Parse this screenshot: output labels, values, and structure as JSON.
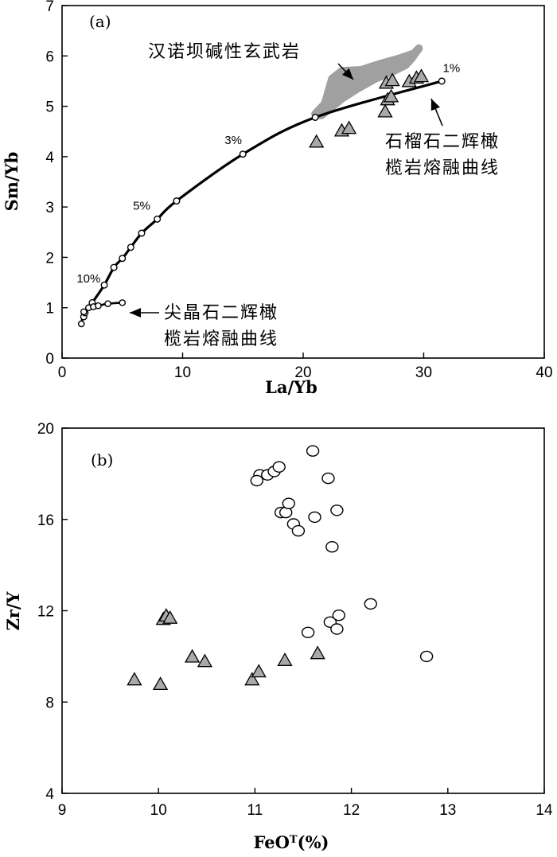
{
  "chart_data": [
    {
      "type": "scatter",
      "panel_label": "(a)",
      "xlabel": "La/Yb",
      "ylabel": "Sm/Yb",
      "xlim": [
        0,
        40
      ],
      "ylim": [
        0,
        7
      ],
      "xticks": [
        "0",
        "10",
        "20",
        "30",
        "40"
      ],
      "yticks": [
        "0",
        "1",
        "2",
        "3",
        "4",
        "5",
        "6",
        "7"
      ],
      "grid": false,
      "colors": {
        "curve": "#000000",
        "triangles": "#a9a9a9",
        "field": "#a0a0a0"
      },
      "field": {
        "label": "汉诺坝碱性玄武岩",
        "outline": [
          [
            21.0,
            4.85
          ],
          [
            21.8,
            5.05
          ],
          [
            22.4,
            5.55
          ],
          [
            23.2,
            5.7
          ],
          [
            24.8,
            5.72
          ],
          [
            26.5,
            5.85
          ],
          [
            28.0,
            5.95
          ],
          [
            29.2,
            6.05
          ],
          [
            29.6,
            6.15
          ],
          [
            29.0,
            5.95
          ],
          [
            28.5,
            5.82
          ],
          [
            27.5,
            5.7
          ],
          [
            26.0,
            5.55
          ],
          [
            24.5,
            5.35
          ],
          [
            23.2,
            5.15
          ],
          [
            22.2,
            4.95
          ],
          [
            21.5,
            4.82
          ]
        ]
      },
      "garnet_curve": {
        "label_line1": "石榴石二辉橄",
        "label_line2": "榄岩熔融曲线",
        "points": [
          [
            1.8,
            0.82
          ],
          [
            1.9,
            0.9
          ],
          [
            2.5,
            1.1
          ],
          [
            3.5,
            1.45
          ],
          [
            4.3,
            1.8
          ],
          [
            5.0,
            1.98
          ],
          [
            5.7,
            2.2
          ],
          [
            6.6,
            2.48
          ],
          [
            7.9,
            2.76
          ],
          [
            9.5,
            3.12
          ],
          [
            15.0,
            4.05
          ],
          [
            21.0,
            4.78
          ],
          [
            31.5,
            5.5
          ]
        ],
        "pct_labels": [
          {
            "text": "1%",
            "x": 32.3,
            "y": 5.68
          },
          {
            "text": "3%",
            "x": 14.2,
            "y": 4.25
          },
          {
            "text": "5%",
            "x": 6.6,
            "y": 2.95
          },
          {
            "text": "10%",
            "x": 2.2,
            "y": 1.5
          }
        ]
      },
      "spinel_curve": {
        "label_line1": "尖晶石二辉橄",
        "label_line2": "榄岩熔融曲线",
        "points": [
          [
            1.6,
            0.68
          ],
          [
            1.8,
            0.92
          ],
          [
            2.2,
            1.0
          ],
          [
            2.6,
            1.02
          ],
          [
            3.0,
            1.04
          ],
          [
            3.8,
            1.08
          ],
          [
            5.0,
            1.1
          ]
        ]
      },
      "triangles": [
        [
          21.1,
          4.28
        ],
        [
          23.2,
          4.5
        ],
        [
          23.8,
          4.55
        ],
        [
          26.8,
          4.88
        ],
        [
          27.0,
          5.12
        ],
        [
          27.3,
          5.18
        ],
        [
          26.9,
          5.45
        ],
        [
          27.4,
          5.5
        ],
        [
          28.8,
          5.48
        ],
        [
          29.4,
          5.55
        ],
        [
          29.8,
          5.58
        ]
      ]
    },
    {
      "type": "scatter",
      "panel_label": "(b)",
      "xlabel": "FeO",
      "xlabel_sup": "T",
      "xlabel_suffix": "(%)",
      "ylabel": "Zr/Y",
      "xlim": [
        9,
        14
      ],
      "ylim": [
        4,
        20
      ],
      "xticks": [
        "9",
        "10",
        "11",
        "12",
        "13",
        "14"
      ],
      "yticks": [
        "4",
        "8",
        "12",
        "16",
        "20"
      ],
      "grid": false,
      "colors": {
        "triangles": "#a9a9a9",
        "circles": "#ffffff"
      },
      "circles": [
        [
          11.6,
          19.0
        ],
        [
          11.05,
          17.95
        ],
        [
          11.13,
          17.95
        ],
        [
          11.2,
          18.1
        ],
        [
          11.02,
          17.7
        ],
        [
          11.25,
          18.3
        ],
        [
          11.27,
          16.3
        ],
        [
          11.32,
          16.3
        ],
        [
          11.35,
          16.7
        ],
        [
          11.4,
          15.8
        ],
        [
          11.45,
          15.5
        ],
        [
          11.62,
          16.1
        ],
        [
          11.76,
          17.8
        ],
        [
          11.85,
          16.4
        ],
        [
          11.8,
          14.8
        ],
        [
          11.55,
          11.05
        ],
        [
          11.78,
          11.5
        ],
        [
          11.85,
          11.2
        ],
        [
          11.87,
          11.8
        ],
        [
          12.2,
          12.3
        ],
        [
          12.78,
          10.0
        ]
      ],
      "triangles": [
        [
          9.75,
          8.95
        ],
        [
          10.02,
          8.75
        ],
        [
          10.05,
          11.6
        ],
        [
          10.08,
          11.75
        ],
        [
          10.12,
          11.65
        ],
        [
          10.35,
          9.95
        ],
        [
          10.48,
          9.75
        ],
        [
          10.97,
          8.95
        ],
        [
          11.04,
          9.3
        ],
        [
          11.31,
          9.8
        ],
        [
          11.65,
          10.1
        ]
      ]
    }
  ]
}
